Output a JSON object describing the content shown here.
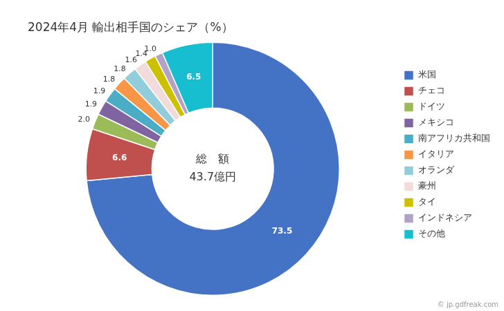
{
  "chart_data": {
    "type": "doughnut",
    "title": "2024年4月 輸出相手国のシェア（%）",
    "center_text": [
      "総　額",
      "43.7億円"
    ],
    "annotations": [
      "© jp.gdfreak.com"
    ],
    "categories": [
      "米国",
      "チェコ",
      "ドイツ",
      "メキシコ",
      "南アフリカ共和国",
      "イタリア",
      "オランダ",
      "豪州",
      "タイ",
      "インドネシア",
      "その他"
    ],
    "values": [
      73.5,
      6.6,
      2.0,
      1.9,
      1.9,
      1.8,
      1.8,
      1.6,
      1.4,
      1.0,
      6.5
    ],
    "value_labels": [
      "73.5",
      "6.6",
      "2.0",
      "1.9",
      "1.9",
      "1.8",
      "1.8",
      "1.6",
      "1.4",
      "1.0",
      "6.5"
    ],
    "colors": [
      "#4472C4",
      "#C0504D",
      "#9BBB59",
      "#8064A2",
      "#4BACC6",
      "#F79646",
      "#92CDDC",
      "#F2DCDB",
      "#CCC000",
      "#B2A2C7",
      "#17BED0"
    ],
    "data_labels": true,
    "legend": "right"
  }
}
